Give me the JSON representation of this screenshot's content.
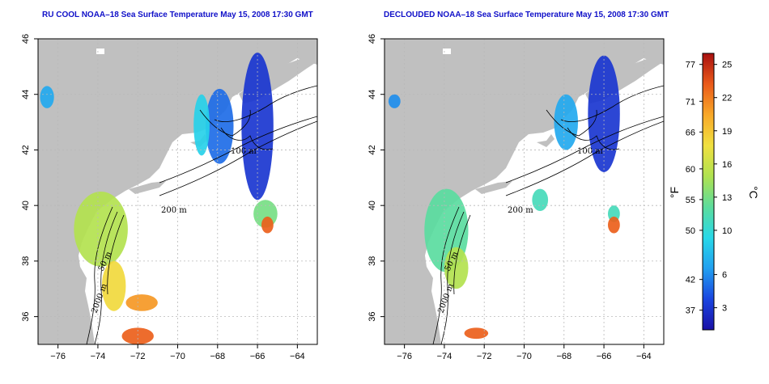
{
  "panels": [
    {
      "title": "RU COOL NOAA–18 Sea Surface Temperature May 15, 2008 17:30 GMT"
    },
    {
      "title": "DECLOUDED NOAA–18 Sea Surface Temperature May 15, 2008 17:30 GMT"
    }
  ],
  "contour_labels": {
    "shelf": "50 m",
    "slope": "200 m",
    "deep": "2000 m",
    "gulf": "100 m"
  },
  "colorbar": {
    "fahrenheit_unit": "°F",
    "celsius_unit": "°C",
    "fahrenheit_ticks": [
      "77",
      "71",
      "66",
      "60",
      "55",
      "50",
      "42",
      "37"
    ],
    "celsius_ticks": [
      "25",
      "22",
      "19",
      "16",
      "13",
      "10",
      "6",
      "3"
    ],
    "range_c": [
      1,
      26
    ],
    "colors": [
      "#1a10a6",
      "#1a45e0",
      "#22a0f0",
      "#28d8e8",
      "#5cdc9c",
      "#b0e250",
      "#f0e040",
      "#f8a828",
      "#ea5a1a",
      "#a81010"
    ]
  },
  "colors": {
    "land": "#c0c0c0",
    "ocean": "#ffffff",
    "grid": "#b8b8b8",
    "title": "#1010c8"
  },
  "chart_data": [
    {
      "type": "heatmap",
      "title": "RU COOL NOAA–18 Sea Surface Temperature May 15, 2008 17:30 GMT",
      "xlim": [
        -77,
        -63
      ],
      "ylim": [
        35,
        46
      ],
      "xticks": [
        -76,
        -74,
        -72,
        -70,
        -68,
        -66,
        -64
      ],
      "yticks": [
        36,
        38,
        40,
        42,
        44,
        46
      ],
      "grid": true,
      "value_unit": "°C",
      "regions": [
        {
          "lon": [
            -66.8,
            -65.2
          ],
          "lat": [
            40.2,
            45.5
          ],
          "sst_c": 3
        },
        {
          "lon": [
            -68.6,
            -67.2
          ],
          "lat": [
            41.5,
            44.2
          ],
          "sst_c": 5
        },
        {
          "lon": [
            -69.2,
            -68.4
          ],
          "lat": [
            41.8,
            44.0
          ],
          "sst_c": 9
        },
        {
          "lon": [
            -76.9,
            -76.2
          ],
          "lat": [
            43.5,
            44.3
          ],
          "sst_c": 7
        },
        {
          "lon": [
            -75.2,
            -72.5
          ],
          "lat": [
            37.8,
            40.5
          ],
          "sst_c": 15
        },
        {
          "lon": [
            -73.8,
            -72.6
          ],
          "lat": [
            36.2,
            38.0
          ],
          "sst_c": 18
        },
        {
          "lon": [
            -72.6,
            -71.0
          ],
          "lat": [
            36.2,
            36.8
          ],
          "sst_c": 21
        },
        {
          "lon": [
            -72.8,
            -71.2
          ],
          "lat": [
            35.0,
            35.6
          ],
          "sst_c": 23
        },
        {
          "lon": [
            -66.2,
            -65.0
          ],
          "lat": [
            39.2,
            40.2
          ],
          "sst_c": 13
        },
        {
          "lon": [
            -65.8,
            -65.2
          ],
          "lat": [
            39.0,
            39.6
          ],
          "sst_c": 23
        }
      ]
    },
    {
      "type": "heatmap",
      "title": "DECLOUDED NOAA–18 Sea Surface Temperature May 15, 2008 17:30 GMT",
      "xlim": [
        -77,
        -63
      ],
      "ylim": [
        35,
        46
      ],
      "xticks": [
        -76,
        -74,
        -72,
        -70,
        -68,
        -66,
        -64
      ],
      "yticks": [
        36,
        38,
        40,
        42,
        44,
        46
      ],
      "grid": true,
      "value_unit": "°C",
      "regions": [
        {
          "lon": [
            -66.8,
            -65.2
          ],
          "lat": [
            41.2,
            45.4
          ],
          "sst_c": 3
        },
        {
          "lon": [
            -68.5,
            -67.3
          ],
          "lat": [
            42.0,
            44.0
          ],
          "sst_c": 7
        },
        {
          "lon": [
            -76.8,
            -76.2
          ],
          "lat": [
            43.5,
            44.0
          ],
          "sst_c": 6
        },
        {
          "lon": [
            -75.0,
            -72.8
          ],
          "lat": [
            37.6,
            40.6
          ],
          "sst_c": 12
        },
        {
          "lon": [
            -74.0,
            -72.8
          ],
          "lat": [
            37.0,
            38.5
          ],
          "sst_c": 15
        },
        {
          "lon": [
            -69.6,
            -68.8
          ],
          "lat": [
            39.8,
            40.6
          ],
          "sst_c": 11
        },
        {
          "lon": [
            -65.8,
            -65.2
          ],
          "lat": [
            39.4,
            40.0
          ],
          "sst_c": 11
        },
        {
          "lon": [
            -65.8,
            -65.2
          ],
          "lat": [
            39.0,
            39.6
          ],
          "sst_c": 23
        },
        {
          "lon": [
            -73.0,
            -71.8
          ],
          "lat": [
            35.2,
            35.6
          ],
          "sst_c": 23
        }
      ]
    }
  ]
}
